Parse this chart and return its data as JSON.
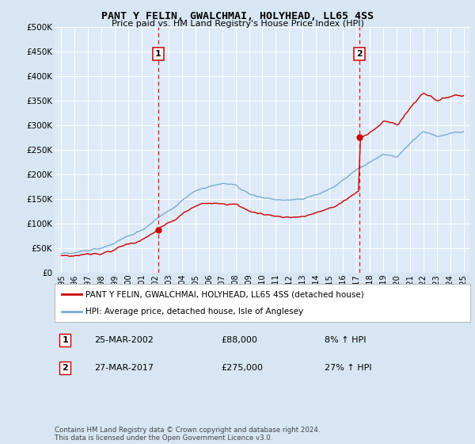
{
  "title": "PANT Y FELIN, GWALCHMAI, HOLYHEAD, LL65 4SS",
  "subtitle": "Price paid vs. HM Land Registry's House Price Index (HPI)",
  "bg_color": "#d8e6f3",
  "plot_bg_color": "#deeaf7",
  "grid_color": "#ffffff",
  "red_line_color": "#cc0000",
  "blue_line_color": "#7aaad0",
  "marker1_x": 2002.23,
  "marker2_x": 2017.23,
  "marker1_y": 88000,
  "marker2_y": 275000,
  "ylim_min": 0,
  "ylim_max": 500000,
  "xlim_min": 1994.5,
  "xlim_max": 2025.5,
  "yticks": [
    0,
    50000,
    100000,
    150000,
    200000,
    250000,
    300000,
    350000,
    400000,
    450000,
    500000
  ],
  "ytick_labels": [
    "£0",
    "£50K",
    "£100K",
    "£150K",
    "£200K",
    "£250K",
    "£300K",
    "£350K",
    "£400K",
    "£450K",
    "£500K"
  ],
  "xticks": [
    1995,
    1996,
    1997,
    1998,
    1999,
    2000,
    2001,
    2002,
    2003,
    2004,
    2005,
    2006,
    2007,
    2008,
    2009,
    2010,
    2011,
    2012,
    2013,
    2014,
    2015,
    2016,
    2017,
    2018,
    2019,
    2020,
    2021,
    2022,
    2023,
    2024,
    2025
  ],
  "legend_label_red": "PANT Y FELIN, GWALCHMAI, HOLYHEAD, LL65 4SS (detached house)",
  "legend_label_blue": "HPI: Average price, detached house, Isle of Anglesey",
  "annotation1_date": "25-MAR-2002",
  "annotation1_price": "£88,000",
  "annotation1_hpi": "8% ↑ HPI",
  "annotation2_date": "27-MAR-2017",
  "annotation2_price": "£275,000",
  "annotation2_hpi": "27% ↑ HPI",
  "footer": "Contains HM Land Registry data © Crown copyright and database right 2024.\nThis data is licensed under the Open Government Licence v3.0."
}
